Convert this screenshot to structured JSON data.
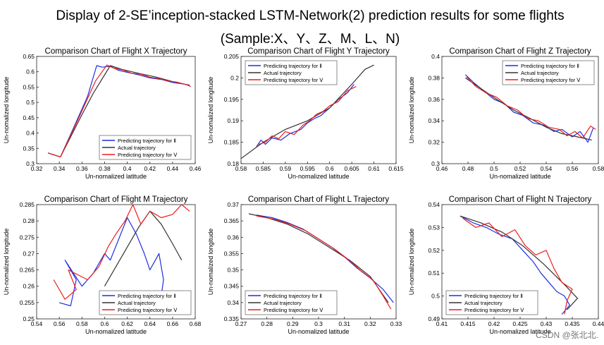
{
  "figure": {
    "title_line1": "Display of 2-SE’inception-stacked LSTM-Network(2) prediction results for some flights",
    "title_line2": "(Sample:X、Y、Z、M、L、N)",
    "watermark": "CSDN @张北北."
  },
  "colors": {
    "blue": "#1f2fe0",
    "black": "#333333",
    "red": "#ee1c1c"
  },
  "chart_data": [
    {
      "id": "X",
      "type": "line",
      "title": "Comparison Chart of Flight X Trajectory",
      "xlabel": "Un-nomalized latitude",
      "ylabel": "Un-nomalized longitude",
      "xlim": [
        0.32,
        0.46
      ],
      "ylim": [
        0.3,
        0.65
      ],
      "xticks": [
        "0.32",
        "0.34",
        "0.36",
        "0.38",
        "0.4",
        "0.42",
        "0.44",
        "0.46"
      ],
      "yticks": [
        "0.3",
        "0.35",
        "0.4",
        "0.45",
        "0.5",
        "0.55",
        "0.6",
        "0.65"
      ],
      "legend_position": "bottom-right",
      "series": [
        {
          "name": "Predicting trajectory for Ⅱ",
          "color": "blue",
          "x": [
            0.33,
            0.341,
            0.353,
            0.365,
            0.373,
            0.378,
            0.385,
            0.392,
            0.4,
            0.41,
            0.42,
            0.43,
            0.44,
            0.45,
            0.455
          ],
          "y": [
            0.335,
            0.322,
            0.42,
            0.52,
            0.62,
            0.615,
            0.618,
            0.605,
            0.598,
            0.59,
            0.58,
            0.575,
            0.565,
            0.56,
            0.556
          ]
        },
        {
          "name": "Actual trajectory",
          "color": "black",
          "x": [
            0.33,
            0.341,
            0.36,
            0.37,
            0.385,
            0.395,
            0.41,
            0.425,
            0.44,
            0.455
          ],
          "y": [
            0.335,
            0.322,
            0.46,
            0.53,
            0.62,
            0.608,
            0.595,
            0.583,
            0.568,
            0.556
          ]
        },
        {
          "name": "Predicting trajectory for Ⅴ",
          "color": "red",
          "x": [
            0.33,
            0.341,
            0.356,
            0.372,
            0.382,
            0.388,
            0.396,
            0.404,
            0.412,
            0.42,
            0.428,
            0.436,
            0.444,
            0.452,
            0.456
          ],
          "y": [
            0.335,
            0.322,
            0.44,
            0.57,
            0.622,
            0.612,
            0.606,
            0.595,
            0.592,
            0.582,
            0.578,
            0.57,
            0.566,
            0.558,
            0.552
          ]
        }
      ]
    },
    {
      "id": "Y",
      "type": "line",
      "title": "Comparison Chart of Flight Y Trajectory",
      "xlabel": "Un-nomalized latitude",
      "ylabel": "Un-nomalized longitude",
      "xlim": [
        0.58,
        0.615
      ],
      "ylim": [
        0.18,
        0.205
      ],
      "xticks": [
        "0.58",
        "0.585",
        "0.59",
        "0.595",
        "0.6",
        "0.605",
        "0.61",
        "0.615"
      ],
      "yticks": [
        "0.18",
        "0.185",
        "0.19",
        "0.195",
        "0.2",
        "0.205"
      ],
      "legend_position": "top-left",
      "series": [
        {
          "name": "Predicting trajectory for Ⅱ",
          "color": "blue",
          "x": [
            0.5835,
            0.5845,
            0.5855,
            0.587,
            0.589,
            0.591,
            0.5935,
            0.595,
            0.5965,
            0.598,
            0.6,
            0.602,
            0.604,
            0.6055
          ],
          "y": [
            0.184,
            0.1855,
            0.1845,
            0.186,
            0.1855,
            0.187,
            0.188,
            0.1895,
            0.1905,
            0.1912,
            0.193,
            0.195,
            0.1965,
            0.1985
          ]
        },
        {
          "name": "Actual trajectory",
          "color": "black",
          "x": [
            0.58,
            0.585,
            0.59,
            0.595,
            0.6,
            0.605,
            0.608,
            0.61
          ],
          "y": [
            0.1812,
            0.185,
            0.188,
            0.19,
            0.193,
            0.1985,
            0.202,
            0.203
          ]
        },
        {
          "name": "Predicting trajectory for Ⅴ",
          "color": "red",
          "x": [
            0.584,
            0.5855,
            0.587,
            0.5885,
            0.59,
            0.592,
            0.594,
            0.5955,
            0.597,
            0.5985,
            0.6,
            0.602,
            0.604,
            0.606
          ],
          "y": [
            0.1845,
            0.185,
            0.1865,
            0.1858,
            0.1875,
            0.1868,
            0.189,
            0.19,
            0.1915,
            0.1922,
            0.1935,
            0.1945,
            0.197,
            0.198
          ]
        }
      ]
    },
    {
      "id": "Z",
      "type": "line",
      "title": "Comparison Chart of Flight Z Trajectory",
      "xlabel": "Un-nomalized latitude",
      "ylabel": "Un-nomalized longitude",
      "xlim": [
        0.46,
        0.58
      ],
      "ylim": [
        0.3,
        0.4
      ],
      "xticks": [
        "0.46",
        "0.48",
        "0.5",
        "0.52",
        "0.54",
        "0.56",
        "0.58"
      ],
      "yticks": [
        "0.3",
        "0.32",
        "0.34",
        "0.36",
        "0.38",
        "0.4"
      ],
      "legend_position": "top-right",
      "series": [
        {
          "name": "Predicting trajectory for Ⅱ",
          "color": "blue",
          "x": [
            0.478,
            0.485,
            0.492,
            0.5,
            0.508,
            0.515,
            0.522,
            0.53,
            0.538,
            0.546,
            0.552,
            0.56,
            0.566,
            0.572,
            0.576
          ],
          "y": [
            0.383,
            0.375,
            0.368,
            0.36,
            0.356,
            0.348,
            0.345,
            0.338,
            0.336,
            0.33,
            0.332,
            0.325,
            0.33,
            0.32,
            0.333
          ]
        },
        {
          "name": "Actual trajectory",
          "color": "black",
          "x": [
            0.478,
            0.49,
            0.502,
            0.515,
            0.528,
            0.54,
            0.552,
            0.564,
            0.575
          ],
          "y": [
            0.38,
            0.37,
            0.36,
            0.35,
            0.342,
            0.334,
            0.328,
            0.325,
            0.322
          ]
        },
        {
          "name": "Predicting trajectory for Ⅴ",
          "color": "red",
          "x": [
            0.479,
            0.486,
            0.494,
            0.502,
            0.51,
            0.518,
            0.526,
            0.534,
            0.542,
            0.55,
            0.556,
            0.562,
            0.568,
            0.574,
            0.578
          ],
          "y": [
            0.381,
            0.372,
            0.366,
            0.362,
            0.354,
            0.35,
            0.342,
            0.34,
            0.334,
            0.332,
            0.326,
            0.33,
            0.324,
            0.335,
            0.332
          ]
        }
      ]
    },
    {
      "id": "M",
      "type": "line",
      "title": "Comparison Chart of Flight M Trajectory",
      "xlabel": "Un-nomalized latitude",
      "ylabel": "Un-nomalized longitude",
      "xlim": [
        0.54,
        0.68
      ],
      "ylim": [
        0.25,
        0.285
      ],
      "xticks": [
        "0.54",
        "0.56",
        "0.58",
        "0.6",
        "0.62",
        "0.64",
        "0.66",
        "0.68"
      ],
      "yticks": [
        "0.25",
        "0.255",
        "0.26",
        "0.265",
        "0.27",
        "0.275",
        "0.28",
        "0.285"
      ],
      "legend_position": "bottom-right",
      "series": [
        {
          "name": "Predicting trajectory for Ⅱ",
          "color": "blue",
          "x": [
            0.56,
            0.57,
            0.575,
            0.565,
            0.58,
            0.59,
            0.6,
            0.605,
            0.612,
            0.62,
            0.628,
            0.635,
            0.64,
            0.648,
            0.652,
            0.65
          ],
          "y": [
            0.255,
            0.254,
            0.262,
            0.268,
            0.26,
            0.264,
            0.27,
            0.268,
            0.274,
            0.281,
            0.276,
            0.27,
            0.265,
            0.27,
            0.262,
            0.257
          ]
        },
        {
          "name": "Actual trajectory",
          "color": "black",
          "x": [
            0.6,
            0.61,
            0.62,
            0.63,
            0.64,
            0.65,
            0.66,
            0.668
          ],
          "y": [
            0.26,
            0.266,
            0.272,
            0.278,
            0.283,
            0.279,
            0.273,
            0.268
          ]
        },
        {
          "name": "Predicting trajectory for Ⅴ",
          "color": "red",
          "x": [
            0.555,
            0.565,
            0.575,
            0.568,
            0.585,
            0.595,
            0.603,
            0.61,
            0.618,
            0.625,
            0.632,
            0.64,
            0.65,
            0.66,
            0.668,
            0.675
          ],
          "y": [
            0.262,
            0.256,
            0.259,
            0.265,
            0.262,
            0.266,
            0.272,
            0.276,
            0.28,
            0.285,
            0.279,
            0.283,
            0.281,
            0.282,
            0.285,
            0.283
          ]
        }
      ]
    },
    {
      "id": "L",
      "type": "line",
      "title": "Comparison Chart of Flight L Trajectory",
      "xlabel": "Un-nomalized latitude",
      "ylabel": "Un-nomalized longitude",
      "xlim": [
        0.27,
        0.33
      ],
      "ylim": [
        0.335,
        0.37
      ],
      "xticks": [
        "0.27",
        "0.28",
        "0.29",
        "0.3",
        "0.31",
        "0.32",
        "0.33"
      ],
      "yticks": [
        "0.335",
        "0.34",
        "0.345",
        "0.35",
        "0.355",
        "0.36",
        "0.365",
        "0.37"
      ],
      "legend_position": "bottom-left",
      "series": [
        {
          "name": "Predicting trajectory for Ⅱ",
          "color": "blue",
          "x": [
            0.276,
            0.282,
            0.288,
            0.294,
            0.3,
            0.305,
            0.31,
            0.315,
            0.32,
            0.325,
            0.329
          ],
          "y": [
            0.3668,
            0.366,
            0.3645,
            0.3625,
            0.3595,
            0.357,
            0.354,
            0.3505,
            0.3475,
            0.344,
            0.34
          ]
        },
        {
          "name": "Actual trajectory",
          "color": "black",
          "x": [
            0.273,
            0.28,
            0.288,
            0.296,
            0.304,
            0.312,
            0.32,
            0.327
          ],
          "y": [
            0.3672,
            0.366,
            0.364,
            0.361,
            0.357,
            0.353,
            0.348,
            0.34
          ]
        },
        {
          "name": "Predicting trajectory for Ⅴ",
          "color": "red",
          "x": [
            0.276,
            0.283,
            0.289,
            0.295,
            0.301,
            0.306,
            0.311,
            0.316,
            0.321,
            0.325,
            0.328
          ],
          "y": [
            0.3665,
            0.3655,
            0.364,
            0.362,
            0.359,
            0.3565,
            0.3535,
            0.35,
            0.347,
            0.342,
            0.338
          ]
        }
      ]
    },
    {
      "id": "N",
      "type": "line",
      "title": "Comparison Chart of Flight N Trajectory",
      "xlabel": "Un-nomalized latitude",
      "ylabel": "Un-nomalized longitude",
      "xlim": [
        0.41,
        0.44
      ],
      "ylim": [
        0.49,
        0.54
      ],
      "xticks": [
        "0.41",
        "0.415",
        "0.42",
        "0.425",
        "0.43",
        "0.435",
        "0.44"
      ],
      "yticks": [
        "0.49",
        "0.5",
        "0.51",
        "0.52",
        "0.53",
        "0.54"
      ],
      "legend_position": "bottom-left",
      "series": [
        {
          "name": "Predicting trajectory for Ⅱ",
          "color": "blue",
          "x": [
            0.4135,
            0.416,
            0.4185,
            0.421,
            0.4235,
            0.4255,
            0.4275,
            0.429,
            0.4305,
            0.432,
            0.4335,
            0.4345,
            0.433
          ],
          "y": [
            0.535,
            0.532,
            0.53,
            0.527,
            0.525,
            0.52,
            0.515,
            0.51,
            0.506,
            0.502,
            0.5,
            0.496,
            0.492
          ]
        },
        {
          "name": "Actual trajectory",
          "color": "black",
          "x": [
            0.4135,
            0.4175,
            0.4215,
            0.4255,
            0.4295,
            0.4335,
            0.436,
            0.434
          ],
          "y": [
            0.535,
            0.532,
            0.528,
            0.522,
            0.514,
            0.505,
            0.499,
            0.494
          ]
        },
        {
          "name": "Predicting trajectory for Ⅴ",
          "color": "red",
          "x": [
            0.414,
            0.4165,
            0.419,
            0.4215,
            0.424,
            0.426,
            0.428,
            0.43,
            0.4315,
            0.433,
            0.435,
            0.434,
            0.4335
          ],
          "y": [
            0.534,
            0.53,
            0.532,
            0.526,
            0.529,
            0.522,
            0.518,
            0.52,
            0.512,
            0.506,
            0.503,
            0.498,
            0.492
          ]
        }
      ]
    }
  ]
}
